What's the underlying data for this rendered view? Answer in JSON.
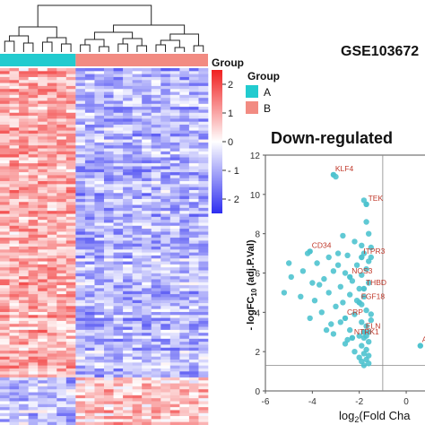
{
  "figure_label": "GSE103672",
  "heatmap": {
    "group_title": "Group",
    "legend_title": "Group",
    "groups": [
      {
        "label": "A",
        "color": "#22cbcf",
        "columns": 8
      },
      {
        "label": "B",
        "color": "#f28b82",
        "columns": 14
      }
    ],
    "colorbar_ticks": [
      "2",
      "1",
      "0",
      "- 1",
      "- 2"
    ],
    "colorbar_range": [
      -2.5,
      2.5
    ],
    "color_low": "#2d2df0",
    "color_mid": "#ffffff",
    "color_high": "#f02020",
    "rows": 120,
    "up_block_start_row": 104
  },
  "chart_data": {
    "type": "scatter",
    "title": "Down-regulated",
    "xlabel": "log2(Fold Cha",
    "ylabel": "- logFC10 (adj.P.Val)",
    "xlim": [
      -6,
      0.8
    ],
    "ylim": [
      0,
      12
    ],
    "xticks": [
      "-6",
      "-4",
      "-2",
      "0"
    ],
    "yticks": [
      "0",
      "2",
      "4",
      "6",
      "8",
      "10",
      "12"
    ],
    "threshold_x": -1,
    "threshold_y": 1.3,
    "point_color": "#4fc3cf",
    "label_color": "#c0392b",
    "labeled_points": [
      {
        "label": "KLF4",
        "x": -3.1,
        "y": 11.0
      },
      {
        "label": "TEK",
        "x": -1.7,
        "y": 9.5
      },
      {
        "label": "CD34",
        "x": -4.1,
        "y": 7.1
      },
      {
        "label": "ITPR3",
        "x": -1.9,
        "y": 6.8
      },
      {
        "label": "NOS3",
        "x": -2.4,
        "y": 5.8
      },
      {
        "label": "THBD",
        "x": -1.8,
        "y": 5.2
      },
      {
        "label": "FGF18",
        "x": -2.0,
        "y": 4.5
      },
      {
        "label": "CRP",
        "x": -2.6,
        "y": 3.7
      },
      {
        "label": "ELN",
        "x": -1.8,
        "y": 3.0
      },
      {
        "label": "NTRK1",
        "x": -2.3,
        "y": 2.7
      },
      {
        "label": "AL",
        "x": 0.6,
        "y": 2.3
      }
    ],
    "points": [
      [
        -3.0,
        10.9
      ],
      [
        -1.8,
        9.7
      ],
      [
        -1.7,
        8.6
      ],
      [
        -1.6,
        8.0
      ],
      [
        -2.7,
        7.9
      ],
      [
        -2.2,
        7.6
      ],
      [
        -1.9,
        7.4
      ],
      [
        -1.5,
        7.3
      ],
      [
        -4.2,
        7.0
      ],
      [
        -2.9,
        7.0
      ],
      [
        -1.8,
        7.0
      ],
      [
        -3.3,
        6.8
      ],
      [
        -2.5,
        6.9
      ],
      [
        -1.6,
        6.6
      ],
      [
        -5.0,
        6.5
      ],
      [
        -3.8,
        6.5
      ],
      [
        -2.1,
        6.4
      ],
      [
        -1.7,
        6.2
      ],
      [
        -4.4,
        6.1
      ],
      [
        -3.1,
        6.1
      ],
      [
        -2.6,
        6.0
      ],
      [
        -1.9,
        5.9
      ],
      [
        -4.9,
        5.8
      ],
      [
        -3.5,
        5.7
      ],
      [
        -2.3,
        5.6
      ],
      [
        -1.6,
        5.5
      ],
      [
        -4.0,
        5.5
      ],
      [
        -3.7,
        5.4
      ],
      [
        -2.8,
        5.3
      ],
      [
        -2.0,
        5.2
      ],
      [
        -5.2,
        5.0
      ],
      [
        -3.3,
        5.0
      ],
      [
        -2.4,
        4.9
      ],
      [
        -1.8,
        4.8
      ],
      [
        -4.5,
        4.8
      ],
      [
        -3.9,
        4.6
      ],
      [
        -2.7,
        4.5
      ],
      [
        -1.9,
        4.4
      ],
      [
        -3.0,
        4.3
      ],
      [
        -1.7,
        4.1
      ],
      [
        -3.6,
        4.0
      ],
      [
        -2.2,
        3.9
      ],
      [
        -1.5,
        3.9
      ],
      [
        -4.1,
        3.7
      ],
      [
        -2.8,
        3.5
      ],
      [
        -1.9,
        3.5
      ],
      [
        -3.2,
        3.4
      ],
      [
        -1.7,
        3.3
      ],
      [
        -2.4,
        3.1
      ],
      [
        -1.6,
        3.0
      ],
      [
        -3.1,
        2.9
      ],
      [
        -2.0,
        2.8
      ],
      [
        -1.8,
        2.7
      ],
      [
        -1.6,
        2.5
      ],
      [
        -2.6,
        2.4
      ],
      [
        -1.9,
        2.3
      ],
      [
        -1.7,
        2.1
      ],
      [
        -2.2,
        2.0
      ],
      [
        -1.8,
        1.9
      ],
      [
        -1.6,
        1.8
      ],
      [
        -2.0,
        1.7
      ],
      [
        -1.7,
        1.6
      ],
      [
        -1.9,
        1.5
      ],
      [
        -1.6,
        1.4
      ],
      [
        -1.8,
        1.3
      ],
      [
        -1.7,
        2.8
      ],
      [
        -1.5,
        3.6
      ],
      [
        -2.1,
        4.6
      ],
      [
        -2.9,
        6.4
      ],
      [
        -1.5,
        6.8
      ],
      [
        -3.4,
        3.1
      ],
      [
        -2.5,
        2.6
      ]
    ]
  }
}
